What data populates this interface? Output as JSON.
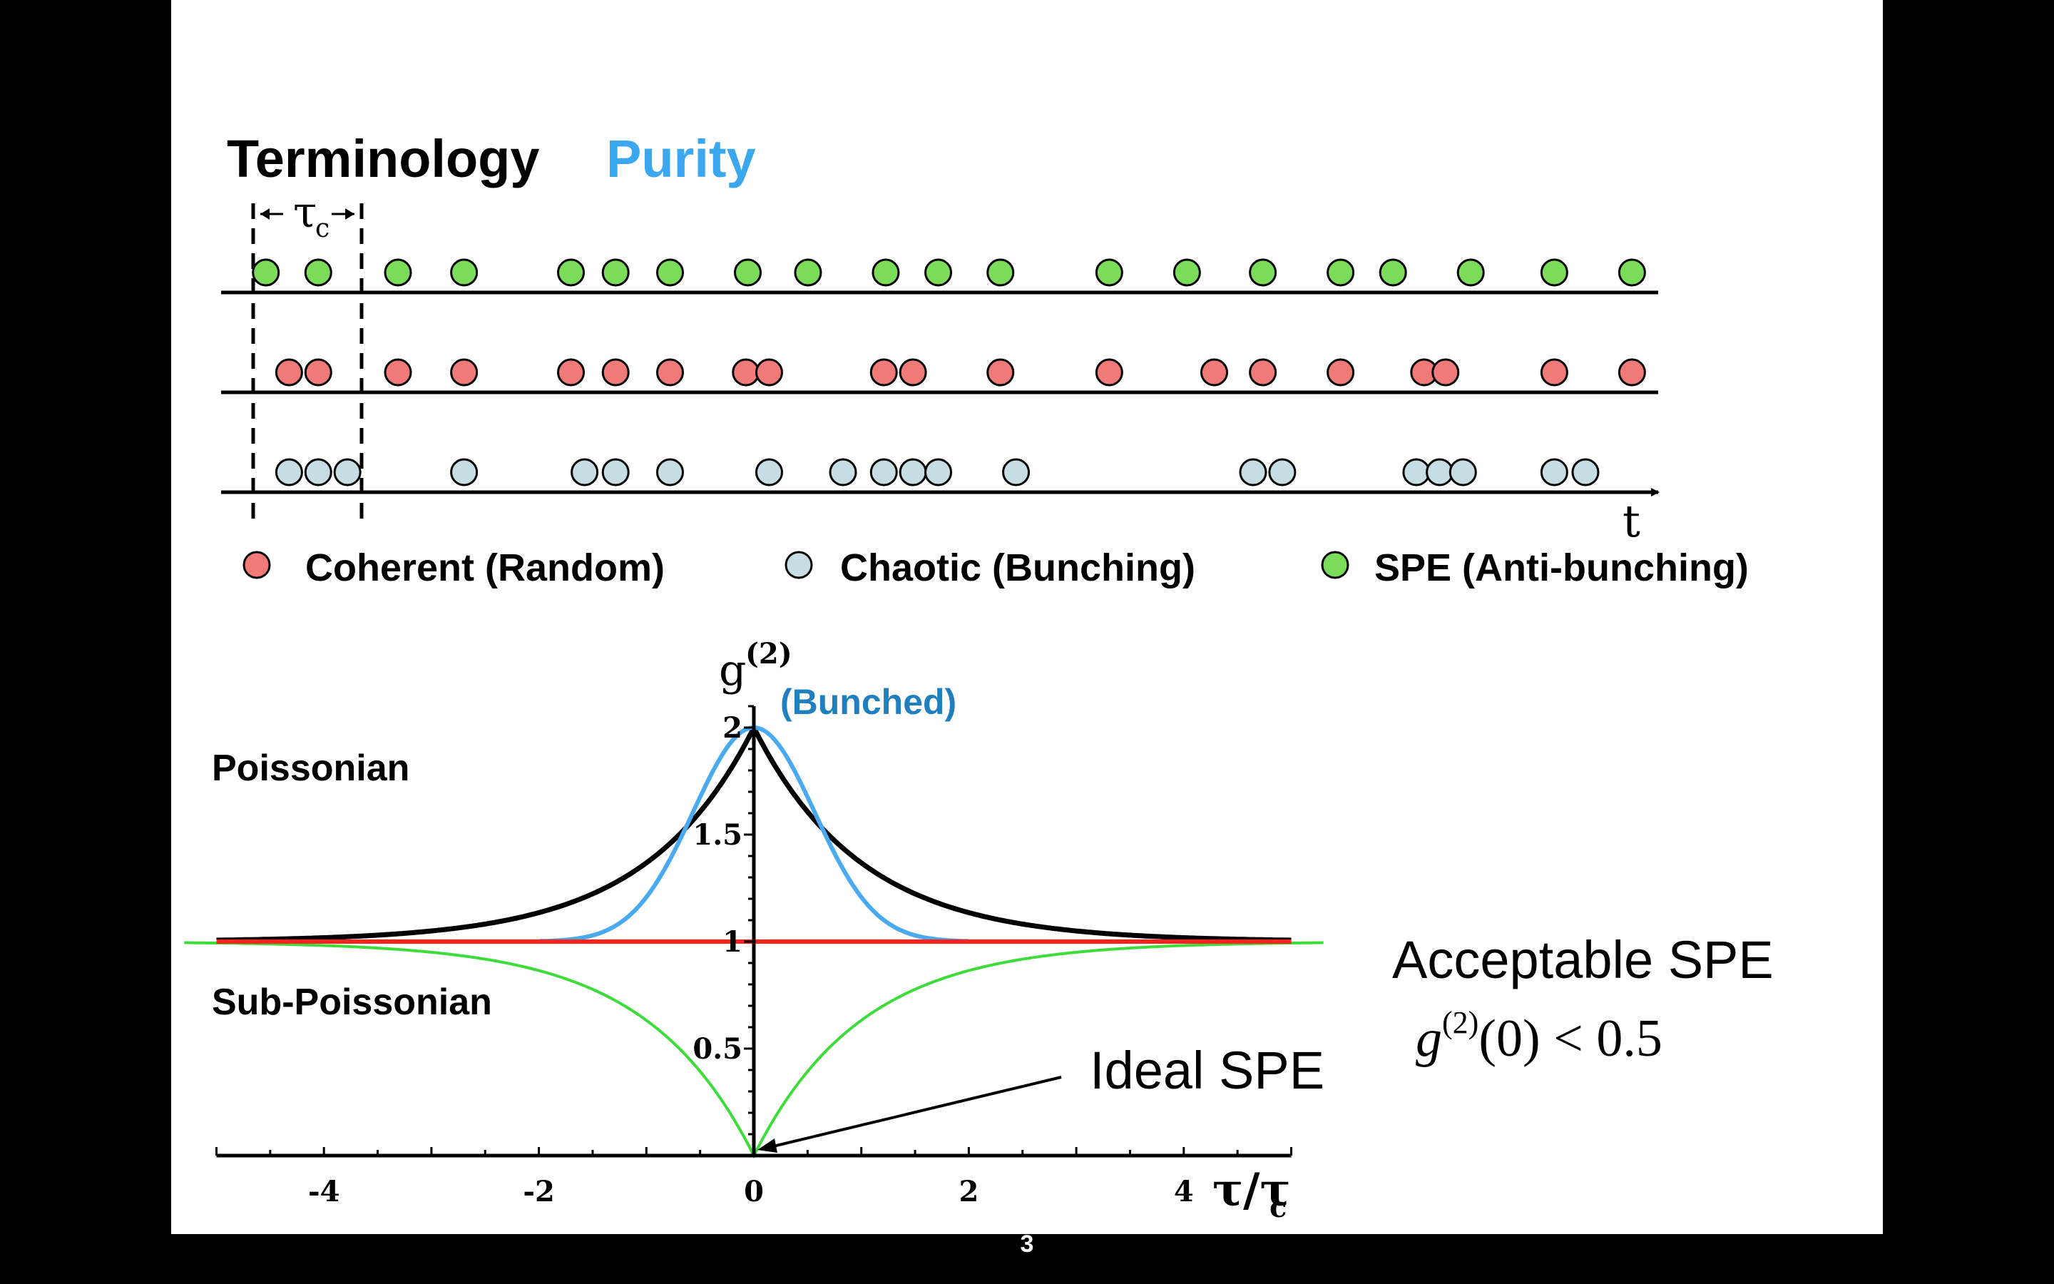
{
  "slide": {
    "title": "Terminology",
    "subtitle": "Purity",
    "page_number": "3"
  },
  "timeline": {
    "tau_label": "τ",
    "tau_sub": "c",
    "axis_label": "t",
    "colors": {
      "spe": "#7bdc5a",
      "coherent": "#f07a78",
      "chaotic": "#c6dde3"
    },
    "spe_events": [
      0.6,
      1.95,
      4.0,
      5.7,
      8.45,
      9.6,
      11.0,
      13.0,
      14.55,
      16.55,
      17.9,
      19.5,
      22.3,
      24.3,
      26.25,
      28.25,
      29.6,
      31.6,
      33.75,
      35.75
    ],
    "coherent_events": [
      1.2,
      1.95,
      4.0,
      5.7,
      8.45,
      9.6,
      11.0,
      12.95,
      13.55,
      16.5,
      17.25,
      19.5,
      22.3,
      25.0,
      26.25,
      28.25,
      30.4,
      30.95,
      33.75,
      35.75
    ],
    "chaotic_events": [
      1.2,
      1.95,
      2.7,
      5.7,
      8.8,
      9.6,
      11.0,
      13.55,
      15.45,
      16.5,
      17.25,
      17.9,
      19.9,
      26.0,
      26.75,
      30.2,
      30.8,
      31.4,
      33.75,
      34.55
    ]
  },
  "legend": [
    {
      "label": "Coherent (Random)",
      "color": "#f07a78"
    },
    {
      "label": "Chaotic (Bunching)",
      "color": "#c6dde3"
    },
    {
      "label": "SPE (Anti-bunching)",
      "color": "#7bdc5a"
    }
  ],
  "labels": {
    "poissonian": "Poissonian",
    "sub_poissonian": "Sub-Poissonian",
    "bunched": "(Bunched)",
    "acceptable": "Acceptable SPE",
    "ideal": "Ideal SPE",
    "formula_g": "g",
    "formula_sup": "(2)",
    "formula_rest": "(0) < 0.5"
  },
  "chart_data": {
    "type": "line",
    "ylabel": "g (2)",
    "xlabel": "τ/τc",
    "xlim": [
      -5,
      5
    ],
    "ylim": [
      0,
      2.1
    ],
    "x_ticks": [
      -4,
      -2,
      0,
      2,
      4
    ],
    "y_ticks": [
      0.5,
      1,
      1.5,
      2
    ],
    "x_tick_labels": [
      "-4",
      "-2",
      "0",
      "2",
      "4"
    ],
    "y_tick_labels": [
      "0.5",
      "1",
      "1.5",
      "2"
    ],
    "series": [
      {
        "color": "#000000",
        "x": [
          -5,
          -4,
          -3,
          -2,
          -1.5,
          -1,
          -0.5,
          0,
          0.5,
          1,
          1.5,
          2,
          3,
          4,
          5
        ],
        "y": [
          1.007,
          1.018,
          1.05,
          1.135,
          1.223,
          1.368,
          1.607,
          2.0,
          1.607,
          1.368,
          1.223,
          1.135,
          1.05,
          1.018,
          1.007
        ]
      },
      {
        "color": "#4aaaf0",
        "x": [
          -2,
          -1.5,
          -1,
          -0.75,
          -0.5,
          -0.25,
          0,
          0.25,
          0.5,
          0.75,
          1,
          1.5,
          2
        ],
        "y": [
          1.0,
          1.011,
          1.135,
          1.326,
          1.606,
          1.882,
          2.0,
          1.882,
          1.606,
          1.326,
          1.135,
          1.011,
          1.0
        ]
      },
      {
        "color": "#ff2020",
        "x": [
          -5,
          5
        ],
        "y": [
          1.0,
          1.0
        ]
      },
      {
        "color": "#3ddc3a",
        "x": [
          -5.3,
          -4,
          -3,
          -2,
          -1.5,
          -1,
          -0.5,
          0,
          0.5,
          1,
          1.5,
          2,
          3,
          4,
          5.3
        ],
        "y": [
          0.995,
          0.982,
          0.95,
          0.865,
          0.777,
          0.632,
          0.393,
          0.0,
          0.393,
          0.632,
          0.777,
          0.865,
          0.95,
          0.982,
          0.995
        ]
      }
    ]
  }
}
